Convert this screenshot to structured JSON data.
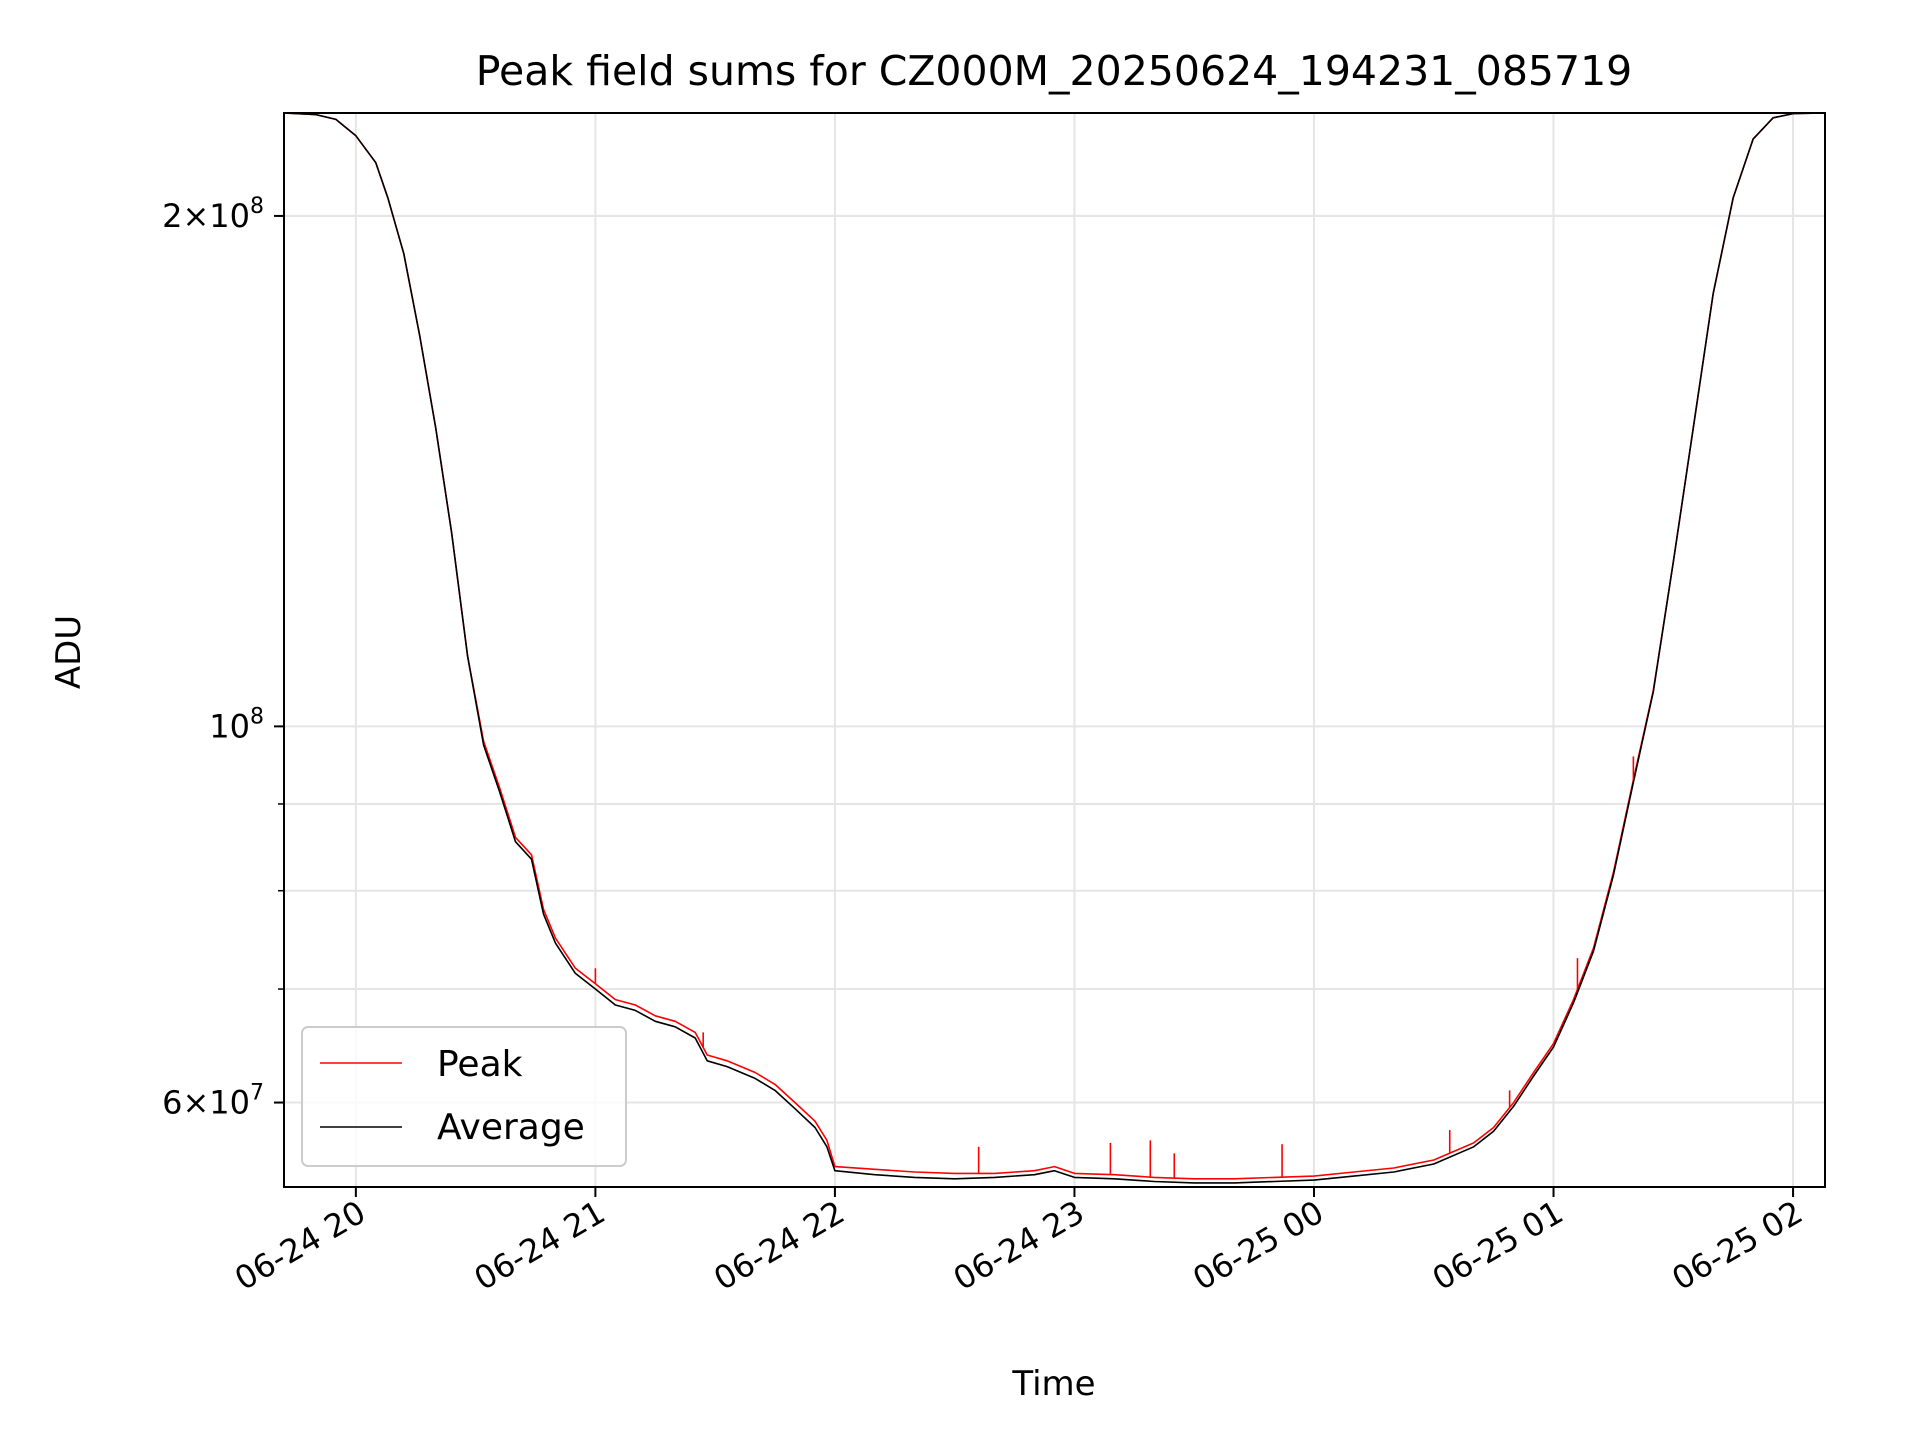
{
  "chart_data": {
    "type": "line",
    "title": "Peak field sums for CZ000M_20250624_194231_085719",
    "xlabel": "Time",
    "ylabel": "ADU",
    "x_axis": {
      "kind": "time",
      "range": [
        "2025-06-24 19:42",
        "2025-06-25 02:08"
      ],
      "ticks": [
        {
          "time": "2025-06-24 20:00",
          "label": "06-24 20"
        },
        {
          "time": "2025-06-24 21:00",
          "label": "06-24 21"
        },
        {
          "time": "2025-06-24 22:00",
          "label": "06-24 22"
        },
        {
          "time": "2025-06-24 23:00",
          "label": "06-24 23"
        },
        {
          "time": "2025-06-25 00:00",
          "label": "06-25 00"
        },
        {
          "time": "2025-06-25 01:00",
          "label": "06-25 01"
        },
        {
          "time": "2025-06-25 02:00",
          "label": "06-25 02"
        }
      ]
    },
    "y_axis": {
      "scale": "log",
      "range": [
        53500000,
        230000000
      ],
      "labeled_ticks": [
        {
          "value": 60000000,
          "mantissa": "6",
          "exp": "7"
        },
        {
          "value": 100000000,
          "mantissa": "",
          "exp": "8"
        },
        {
          "value": 200000000,
          "mantissa": "2",
          "exp": "8"
        }
      ],
      "minor_ticks": [
        60000000,
        70000000,
        80000000,
        90000000,
        200000000
      ]
    },
    "grid": true,
    "legend": {
      "placement": "lower-left"
    },
    "series": [
      {
        "name": "Peak",
        "color": "#ff0000",
        "points": [
          [
            "2025-06-24 19:42",
            230000000
          ],
          [
            "2025-06-24 19:50",
            229500000
          ],
          [
            "2025-06-24 19:55",
            228000000
          ],
          [
            "2025-06-24 20:00",
            223000000
          ],
          [
            "2025-06-24 20:05",
            215000000
          ],
          [
            "2025-06-24 20:08",
            205000000
          ],
          [
            "2025-06-24 20:12",
            190000000
          ],
          [
            "2025-06-24 20:16",
            170000000
          ],
          [
            "2025-06-24 20:20",
            150000000
          ],
          [
            "2025-06-24 20:24",
            130000000
          ],
          [
            "2025-06-24 20:28",
            110000000
          ],
          [
            "2025-06-24 20:32",
            98000000
          ],
          [
            "2025-06-24 20:36",
            92000000
          ],
          [
            "2025-06-24 20:40",
            86000000
          ],
          [
            "2025-06-24 20:44",
            84000000
          ],
          [
            "2025-06-24 20:47",
            78000000
          ],
          [
            "2025-06-24 20:50",
            75000000
          ],
          [
            "2025-06-24 20:55",
            72000000
          ],
          [
            "2025-06-24 21:00",
            70500000
          ],
          [
            "2025-06-24 21:05",
            69000000
          ],
          [
            "2025-06-24 21:10",
            68500000
          ],
          [
            "2025-06-24 21:15",
            67500000
          ],
          [
            "2025-06-24 21:20",
            67000000
          ],
          [
            "2025-06-24 21:25",
            66000000
          ],
          [
            "2025-06-24 21:28",
            64000000
          ],
          [
            "2025-06-24 21:33",
            63500000
          ],
          [
            "2025-06-24 21:40",
            62500000
          ],
          [
            "2025-06-24 21:45",
            61500000
          ],
          [
            "2025-06-24 21:50",
            60000000
          ],
          [
            "2025-06-24 21:55",
            58500000
          ],
          [
            "2025-06-24 21:58",
            57000000
          ],
          [
            "2025-06-24 22:00",
            55000000
          ],
          [
            "2025-06-24 22:10",
            54800000
          ],
          [
            "2025-06-24 22:20",
            54600000
          ],
          [
            "2025-06-24 22:30",
            54500000
          ],
          [
            "2025-06-24 22:40",
            54500000
          ],
          [
            "2025-06-24 22:50",
            54700000
          ],
          [
            "2025-06-24 22:55",
            55000000
          ],
          [
            "2025-06-24 23:00",
            54500000
          ],
          [
            "2025-06-24 23:10",
            54400000
          ],
          [
            "2025-06-24 23:20",
            54200000
          ],
          [
            "2025-06-24 23:30",
            54100000
          ],
          [
            "2025-06-24 23:40",
            54100000
          ],
          [
            "2025-06-24 23:50",
            54200000
          ],
          [
            "2025-06-25 00:00",
            54300000
          ],
          [
            "2025-06-25 00:10",
            54600000
          ],
          [
            "2025-06-25 00:20",
            54900000
          ],
          [
            "2025-06-25 00:30",
            55500000
          ],
          [
            "2025-06-25 00:40",
            56800000
          ],
          [
            "2025-06-25 00:45",
            58000000
          ],
          [
            "2025-06-25 00:50",
            60000000
          ],
          [
            "2025-06-25 00:55",
            62500000
          ],
          [
            "2025-06-25 01:00",
            65000000
          ],
          [
            "2025-06-25 01:05",
            69000000
          ],
          [
            "2025-06-25 01:10",
            74000000
          ],
          [
            "2025-06-25 01:15",
            82000000
          ],
          [
            "2025-06-25 01:20",
            93000000
          ],
          [
            "2025-06-25 01:25",
            105000000
          ],
          [
            "2025-06-25 01:30",
            125000000
          ],
          [
            "2025-06-25 01:35",
            150000000
          ],
          [
            "2025-06-25 01:40",
            180000000
          ],
          [
            "2025-06-25 01:45",
            205000000
          ],
          [
            "2025-06-25 01:50",
            222000000
          ],
          [
            "2025-06-25 01:55",
            228500000
          ],
          [
            "2025-06-25 02:00",
            229800000
          ],
          [
            "2025-06-25 02:08",
            230000000
          ]
        ]
      },
      {
        "name": "Average",
        "color": "#000000",
        "points": [
          [
            "2025-06-24 19:42",
            230000000
          ],
          [
            "2025-06-24 19:50",
            229500000
          ],
          [
            "2025-06-24 19:55",
            228000000
          ],
          [
            "2025-06-24 20:00",
            223000000
          ],
          [
            "2025-06-24 20:05",
            215000000
          ],
          [
            "2025-06-24 20:08",
            205000000
          ],
          [
            "2025-06-24 20:12",
            190000000
          ],
          [
            "2025-06-24 20:16",
            170000000
          ],
          [
            "2025-06-24 20:20",
            150000000
          ],
          [
            "2025-06-24 20:24",
            130000000
          ],
          [
            "2025-06-24 20:28",
            110000000
          ],
          [
            "2025-06-24 20:32",
            97500000
          ],
          [
            "2025-06-24 20:36",
            91500000
          ],
          [
            "2025-06-24 20:40",
            85500000
          ],
          [
            "2025-06-24 20:44",
            83500000
          ],
          [
            "2025-06-24 20:47",
            77500000
          ],
          [
            "2025-06-24 20:50",
            74500000
          ],
          [
            "2025-06-24 20:55",
            71500000
          ],
          [
            "2025-06-24 21:00",
            70000000
          ],
          [
            "2025-06-24 21:05",
            68500000
          ],
          [
            "2025-06-24 21:10",
            68000000
          ],
          [
            "2025-06-24 21:15",
            67000000
          ],
          [
            "2025-06-24 21:20",
            66500000
          ],
          [
            "2025-06-24 21:25",
            65500000
          ],
          [
            "2025-06-24 21:28",
            63500000
          ],
          [
            "2025-06-24 21:33",
            63000000
          ],
          [
            "2025-06-24 21:40",
            62000000
          ],
          [
            "2025-06-24 21:45",
            61000000
          ],
          [
            "2025-06-24 21:50",
            59500000
          ],
          [
            "2025-06-24 21:55",
            58000000
          ],
          [
            "2025-06-24 21:58",
            56500000
          ],
          [
            "2025-06-24 22:00",
            54700000
          ],
          [
            "2025-06-24 22:10",
            54400000
          ],
          [
            "2025-06-24 22:20",
            54200000
          ],
          [
            "2025-06-24 22:30",
            54100000
          ],
          [
            "2025-06-24 22:40",
            54200000
          ],
          [
            "2025-06-24 22:50",
            54400000
          ],
          [
            "2025-06-24 22:55",
            54700000
          ],
          [
            "2025-06-24 23:00",
            54200000
          ],
          [
            "2025-06-24 23:10",
            54100000
          ],
          [
            "2025-06-24 23:20",
            53900000
          ],
          [
            "2025-06-24 23:30",
            53800000
          ],
          [
            "2025-06-24 23:40",
            53800000
          ],
          [
            "2025-06-24 23:50",
            53900000
          ],
          [
            "2025-06-25 00:00",
            54000000
          ],
          [
            "2025-06-25 00:10",
            54300000
          ],
          [
            "2025-06-25 00:20",
            54600000
          ],
          [
            "2025-06-25 00:30",
            55200000
          ],
          [
            "2025-06-25 00:40",
            56500000
          ],
          [
            "2025-06-25 00:45",
            57700000
          ],
          [
            "2025-06-25 00:50",
            59700000
          ],
          [
            "2025-06-25 00:55",
            62200000
          ],
          [
            "2025-06-25 01:00",
            64700000
          ],
          [
            "2025-06-25 01:05",
            68700000
          ],
          [
            "2025-06-25 01:10",
            73700000
          ],
          [
            "2025-06-25 01:15",
            81700000
          ],
          [
            "2025-06-25 01:20",
            92700000
          ],
          [
            "2025-06-25 01:25",
            104800000
          ],
          [
            "2025-06-25 01:30",
            125000000
          ],
          [
            "2025-06-25 01:35",
            150000000
          ],
          [
            "2025-06-25 01:40",
            180000000
          ],
          [
            "2025-06-25 01:45",
            205000000
          ],
          [
            "2025-06-25 01:50",
            222000000
          ],
          [
            "2025-06-25 01:55",
            228500000
          ],
          [
            "2025-06-25 02:00",
            229800000
          ],
          [
            "2025-06-25 02:08",
            230000000
          ]
        ]
      }
    ],
    "spikes": {
      "series": "Peak",
      "points": [
        [
          "2025-06-24 21:00",
          72000000
        ],
        [
          "2025-06-24 21:27",
          66000000
        ],
        [
          "2025-06-24 22:36",
          56500000
        ],
        [
          "2025-06-24 23:09",
          56800000
        ],
        [
          "2025-06-24 23:19",
          57000000
        ],
        [
          "2025-06-24 23:25",
          56000000
        ],
        [
          "2025-06-24 23:52",
          56700000
        ],
        [
          "2025-06-25 00:34",
          57800000
        ],
        [
          "2025-06-25 00:49",
          61000000
        ],
        [
          "2025-06-25 01:06",
          73000000
        ],
        [
          "2025-06-25 01:20",
          96000000
        ]
      ]
    }
  }
}
